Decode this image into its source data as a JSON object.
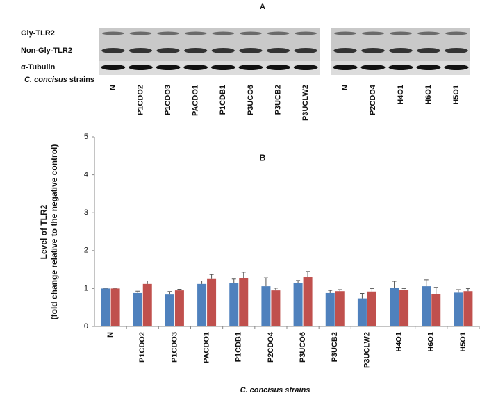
{
  "blot": {
    "title": "A",
    "row_labels": [
      "Gly-TLR2",
      "Non-Gly-TLR2",
      "α-Tubulin"
    ],
    "strains_italic": "C. concisus",
    "strains_word": "strains",
    "lanes_left": [
      "N",
      "P1CDO2",
      "P1CDO3",
      "PACDO1",
      "P1CDB1",
      "P3UCO6",
      "P3UCB2",
      "P3UCLW2"
    ],
    "lanes_right": [
      "N",
      "P2CDO4",
      "H4O1",
      "H6O1",
      "H5O1"
    ]
  },
  "chart_data": {
    "type": "bar",
    "title": "B",
    "x_label": "C. concisus strains",
    "y_label": [
      "Level of TLR2",
      "(fold change relative to the negative control)"
    ],
    "categories": [
      "N",
      "P1CDO2",
      "P1CDO3",
      "PACDO1",
      "P1CDB1",
      "P2CDO4",
      "P3UCO6",
      "P3UCB2",
      "P3UCLW2",
      "H4O1",
      "H6O1",
      "H5O1"
    ],
    "series": [
      {
        "color": "#4f81bd",
        "values": [
          1.0,
          0.88,
          0.84,
          1.12,
          1.15,
          1.06,
          1.14,
          0.88,
          0.74,
          1.02,
          1.06,
          0.89
        ],
        "errors": [
          0.01,
          0.05,
          0.08,
          0.08,
          0.1,
          0.22,
          0.07,
          0.07,
          0.13,
          0.17,
          0.17,
          0.08
        ]
      },
      {
        "color": "#c0504d",
        "values": [
          1.0,
          1.12,
          0.95,
          1.25,
          1.28,
          0.95,
          1.3,
          0.93,
          0.92,
          0.97,
          0.86,
          0.93
        ],
        "errors": [
          0.01,
          0.08,
          0.03,
          0.12,
          0.15,
          0.06,
          0.15,
          0.04,
          0.08,
          0.03,
          0.17,
          0.07
        ]
      }
    ],
    "ylim": [
      0,
      5
    ],
    "yticks": [
      0,
      1,
      2,
      3,
      4,
      5
    ],
    "grid": false
  }
}
